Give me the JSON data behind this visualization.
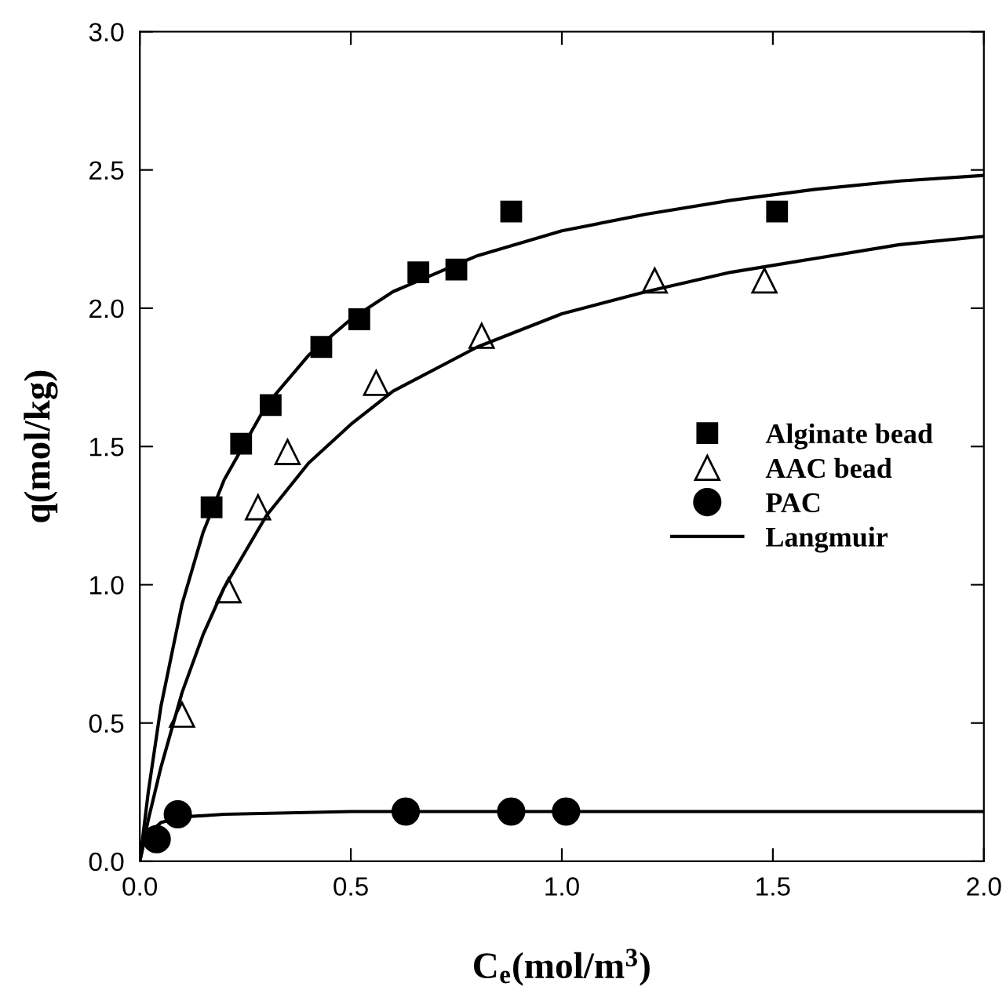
{
  "chart_data": {
    "type": "scatter",
    "xlabel": "C$_{e}$(mol/m$^{3}$)",
    "ylabel": "q(mol/kg)",
    "xlim": [
      0,
      2.0
    ],
    "ylim": [
      0,
      3.0
    ],
    "xticks": [
      {
        "value": 0,
        "label": "0.0"
      },
      0.5,
      {
        "value": 1,
        "label": "1.0"
      },
      1.5,
      {
        "value": 2,
        "label": "2.0"
      }
    ],
    "yticks": [
      {
        "value": 0,
        "label": "0.0"
      },
      0.5,
      {
        "value": 1,
        "label": "1.0"
      },
      1.5,
      {
        "value": 2,
        "label": "2.0"
      },
      2.5,
      {
        "value": 3,
        "label": "3.0"
      }
    ],
    "grid": false,
    "legend": "right",
    "series": [
      {
        "name": "Alginate bead",
        "marker": "square",
        "color": "#000000",
        "x": [
          0.17,
          0.24,
          0.31,
          0.43,
          0.52,
          0.66,
          0.75,
          0.88,
          1.51
        ],
        "values": [
          1.28,
          1.51,
          1.65,
          1.86,
          1.96,
          2.13,
          2.14,
          2.35,
          2.35
        ]
      },
      {
        "name": "AAC bead",
        "marker": "triangle",
        "color": "#000000",
        "x": [
          0.1,
          0.21,
          0.28,
          0.35,
          0.56,
          0.81,
          1.22,
          1.48
        ],
        "values": [
          0.53,
          0.98,
          1.28,
          1.48,
          1.73,
          1.9,
          2.1,
          2.1
        ]
      },
      {
        "name": "PAC",
        "marker": "circle",
        "color": "#000000",
        "x": [
          0.04,
          0.09,
          0.63,
          0.88,
          1.01
        ],
        "values": [
          0.08,
          0.17,
          0.18,
          0.18,
          0.18
        ]
      },
      {
        "name": "Langmuir",
        "type": "line",
        "marker": "none",
        "color": "#000000",
        "x": [
          0,
          0.02,
          0.05,
          0.1,
          0.15,
          0.2,
          0.3,
          0.4,
          0.5,
          0.6,
          0.8,
          1.0,
          1.2,
          1.4,
          1.6,
          1.8,
          2.0
        ],
        "values": [
          0,
          0.25,
          0.56,
          0.93,
          1.19,
          1.38,
          1.65,
          1.83,
          1.96,
          2.06,
          2.19,
          2.28,
          2.34,
          2.39,
          2.43,
          2.46,
          2.48
        ]
      },
      {
        "type": "line",
        "marker": "none",
        "color": "#000000",
        "x": [
          0,
          0.02,
          0.05,
          0.1,
          0.15,
          0.2,
          0.3,
          0.4,
          0.5,
          0.6,
          0.8,
          1.0,
          1.2,
          1.4,
          1.6,
          1.8,
          2.0
        ],
        "values": [
          0,
          0.15,
          0.34,
          0.61,
          0.82,
          0.99,
          1.25,
          1.44,
          1.58,
          1.7,
          1.86,
          1.98,
          2.06,
          2.13,
          2.18,
          2.23,
          2.26
        ]
      },
      {
        "type": "line",
        "marker": "none",
        "color": "#000000",
        "x": [
          0,
          0.01,
          0.02,
          0.05,
          0.1,
          0.2,
          0.5,
          1.0,
          1.5,
          2.0
        ],
        "values": [
          0,
          0.07,
          0.1,
          0.14,
          0.16,
          0.17,
          0.18,
          0.18,
          0.18,
          0.18
        ]
      }
    ]
  }
}
